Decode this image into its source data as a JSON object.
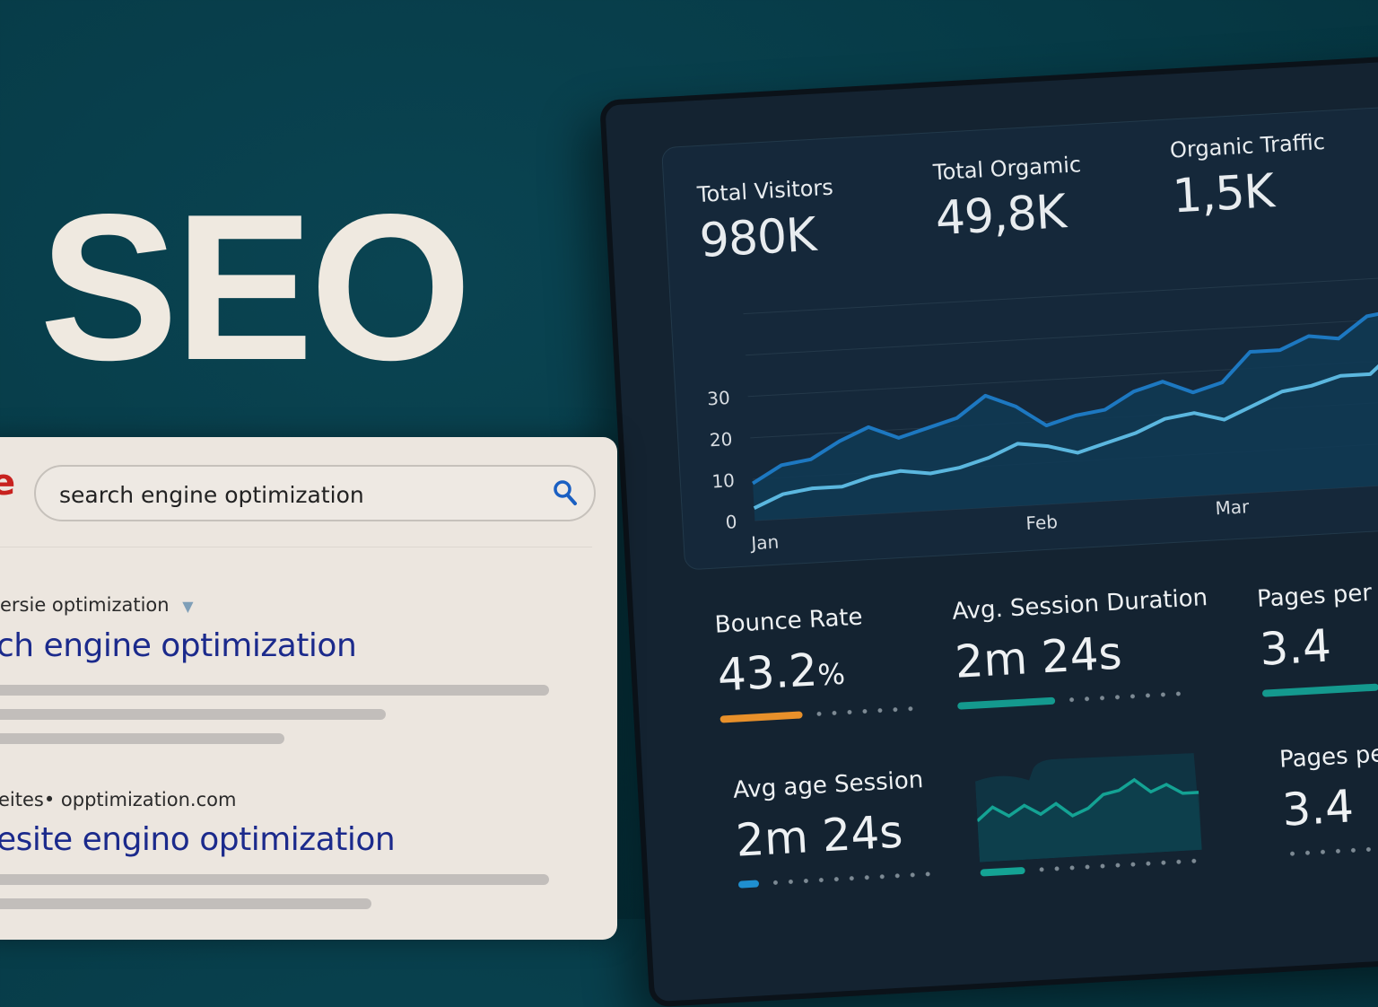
{
  "hero": {
    "title": "SEO"
  },
  "search_panel": {
    "logo_fragment": "e",
    "query": "search engine optimization",
    "search_icon": "magnifier-icon",
    "results": [
      {
        "breadcrumb": "ersie  optimization",
        "has_dropdown": true,
        "title": "ch engine optimization",
        "snippet_lines": 3
      },
      {
        "breadcrumb": "eites• opptimization.com",
        "title": "esite engino optimization",
        "snippet_lines": 2
      }
    ]
  },
  "dashboard": {
    "stats": [
      {
        "label": "Total Visitors",
        "value": "980K"
      },
      {
        "label": "Total Orgamic",
        "value": "49,8K"
      },
      {
        "label": "Organic Traffic",
        "value": "1,5K"
      }
    ],
    "metrics": [
      {
        "label": "Bounce Rate",
        "value": "43.2",
        "unit": "%",
        "progress": 0.6,
        "color": "#e8902a"
      },
      {
        "label": "Avg. Session Duration",
        "value": "2m 24s",
        "progress": 0.6,
        "color": "#14998e"
      },
      {
        "label": "Pages per",
        "value": "3.4",
        "progress": 1.0,
        "color": "#14998e"
      },
      {
        "label": "Avg age Session",
        "value": "2m 24s",
        "progress": 0.15,
        "color": "#1f8fd0"
      },
      {
        "label": "Pages per",
        "value": "3.4",
        "progress": 0.0,
        "color": "#14998e"
      }
    ]
  },
  "chart_data": [
    {
      "type": "area",
      "x_labels": [
        "Jan",
        "Feb",
        "Mar",
        "Mar"
      ],
      "y_ticks": [
        "0",
        "10",
        "20",
        "30"
      ],
      "ylim": [
        0,
        52
      ],
      "grid": true,
      "series": [
        {
          "color": "#1d78c1",
          "values": [
            9,
            13,
            14,
            18,
            21,
            18,
            20,
            22,
            27,
            24,
            19,
            21,
            22,
            26,
            28,
            25,
            27,
            34,
            34,
            37,
            36,
            41,
            42,
            50
          ]
        },
        {
          "color": "#5bb7df",
          "values": [
            3,
            6,
            7,
            7,
            9,
            10,
            9,
            10,
            12,
            15,
            14,
            12,
            14,
            16,
            19,
            20,
            18,
            21,
            24,
            25,
            27,
            27,
            33,
            40
          ]
        }
      ]
    },
    {
      "type": "area",
      "color": "#14a394",
      "values": [
        10,
        14,
        11,
        14,
        11,
        14,
        10,
        12,
        16,
        17,
        20,
        16,
        18,
        15,
        15
      ],
      "progress": 0.2
    }
  ]
}
